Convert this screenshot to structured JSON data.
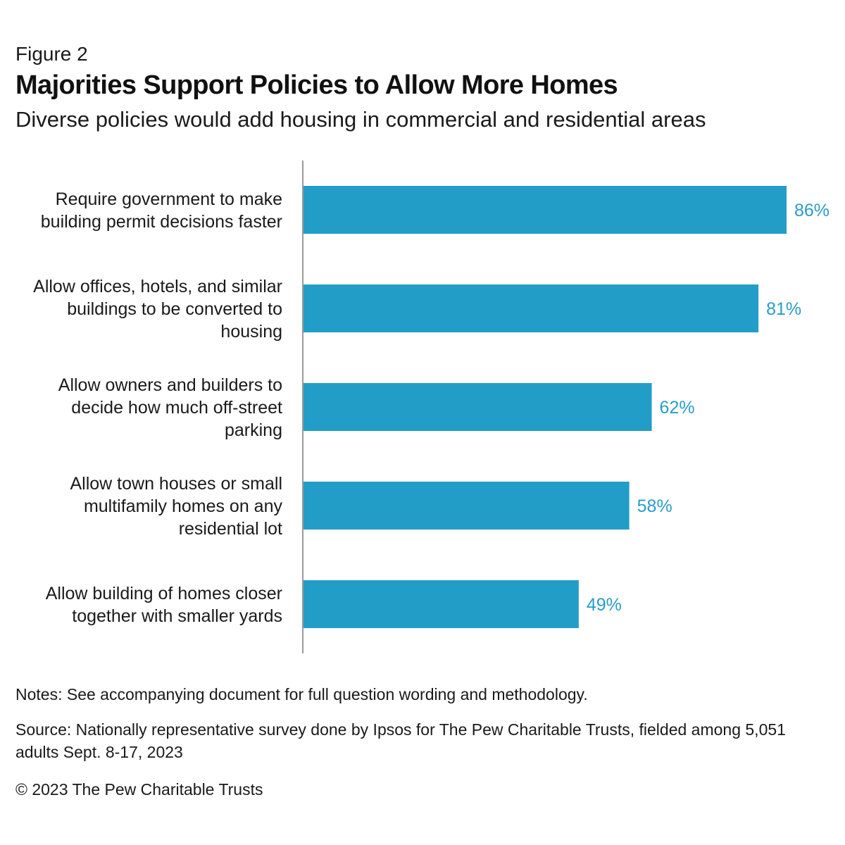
{
  "figure_label": "Figure 2",
  "title": "Majorities Support Policies to Allow More Homes",
  "subtitle": "Diverse policies would add housing in commercial and residential areas",
  "notes": "Notes: See accompanying document for full question wording and methodology.",
  "source": "Source: Nationally representative survey done by Ipsos for The Pew Charitable Trusts, fielded among 5,051 adults Sept. 8-17, 2023",
  "copyright": "© 2023 The Pew Charitable Trusts",
  "colors": {
    "bar": "#229dc8",
    "value_label": "#2a9cc8",
    "axis": "#9a9a9a"
  },
  "chart_data": {
    "type": "bar",
    "orientation": "horizontal",
    "title": "Majorities Support Policies to Allow More Homes",
    "subtitle": "Diverse policies would add housing in commercial and residential areas",
    "categories": [
      [
        "Require government to make",
        "building permit decisions faster"
      ],
      [
        "Allow offices, hotels, and similar",
        "buildings to be converted to",
        "housing"
      ],
      [
        "Allow owners and builders to",
        "decide how much off-street",
        "parking"
      ],
      [
        "Allow town houses or small",
        "multifamily homes on any",
        "residential lot"
      ],
      [
        "Allow building of homes closer",
        "together with smaller yards"
      ]
    ],
    "values": [
      86,
      81,
      62,
      58,
      49
    ],
    "value_labels": [
      "86%",
      "81%",
      "62%",
      "58%",
      "49%"
    ],
    "xlim": [
      0,
      100
    ],
    "grid": false,
    "legend": "none"
  }
}
